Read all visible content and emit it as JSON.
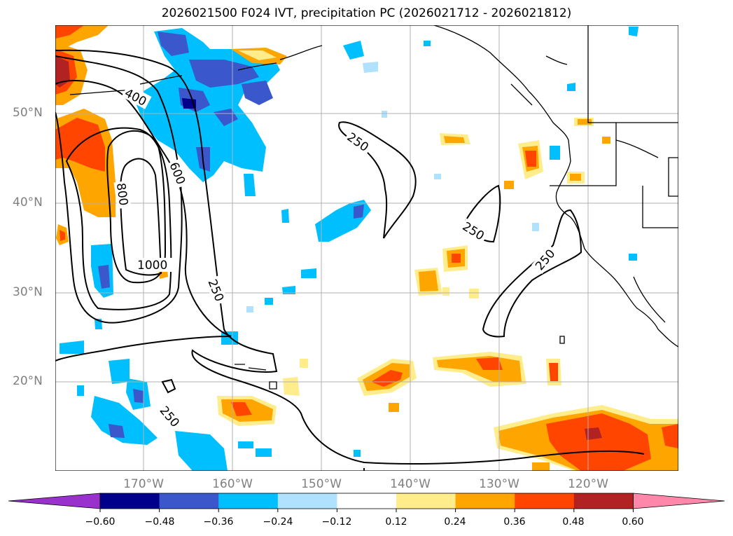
{
  "title": "2026021500 F024 IVT, precipitation PC (2026021712 - 2026021812)",
  "map": {
    "lat_labels": [
      "50°N",
      "40°N",
      "30°N",
      "20°N"
    ],
    "lon_labels": [
      "170°W",
      "160°W",
      "150°W",
      "140°W",
      "130°W",
      "120°W"
    ],
    "contour_labels": [
      "400",
      "600",
      "800",
      "1000",
      "250",
      "250",
      "250",
      "250",
      "250"
    ],
    "line_color": "#000000",
    "grid_color": "#b0b0b0"
  },
  "colorbar": {
    "ticks": [
      "−0.60",
      "−0.48",
      "−0.36",
      "−0.24",
      "−0.12",
      "0.12",
      "0.24",
      "0.36",
      "0.48",
      "0.60"
    ],
    "colors": [
      "#9932cc",
      "#00008b",
      "#3a58cc",
      "#00bfff",
      "#b0e2ff",
      "#ffffff",
      "#ffec8b",
      "#ffa500",
      "#ff4500",
      "#b22222",
      "#ff88aa"
    ]
  }
}
